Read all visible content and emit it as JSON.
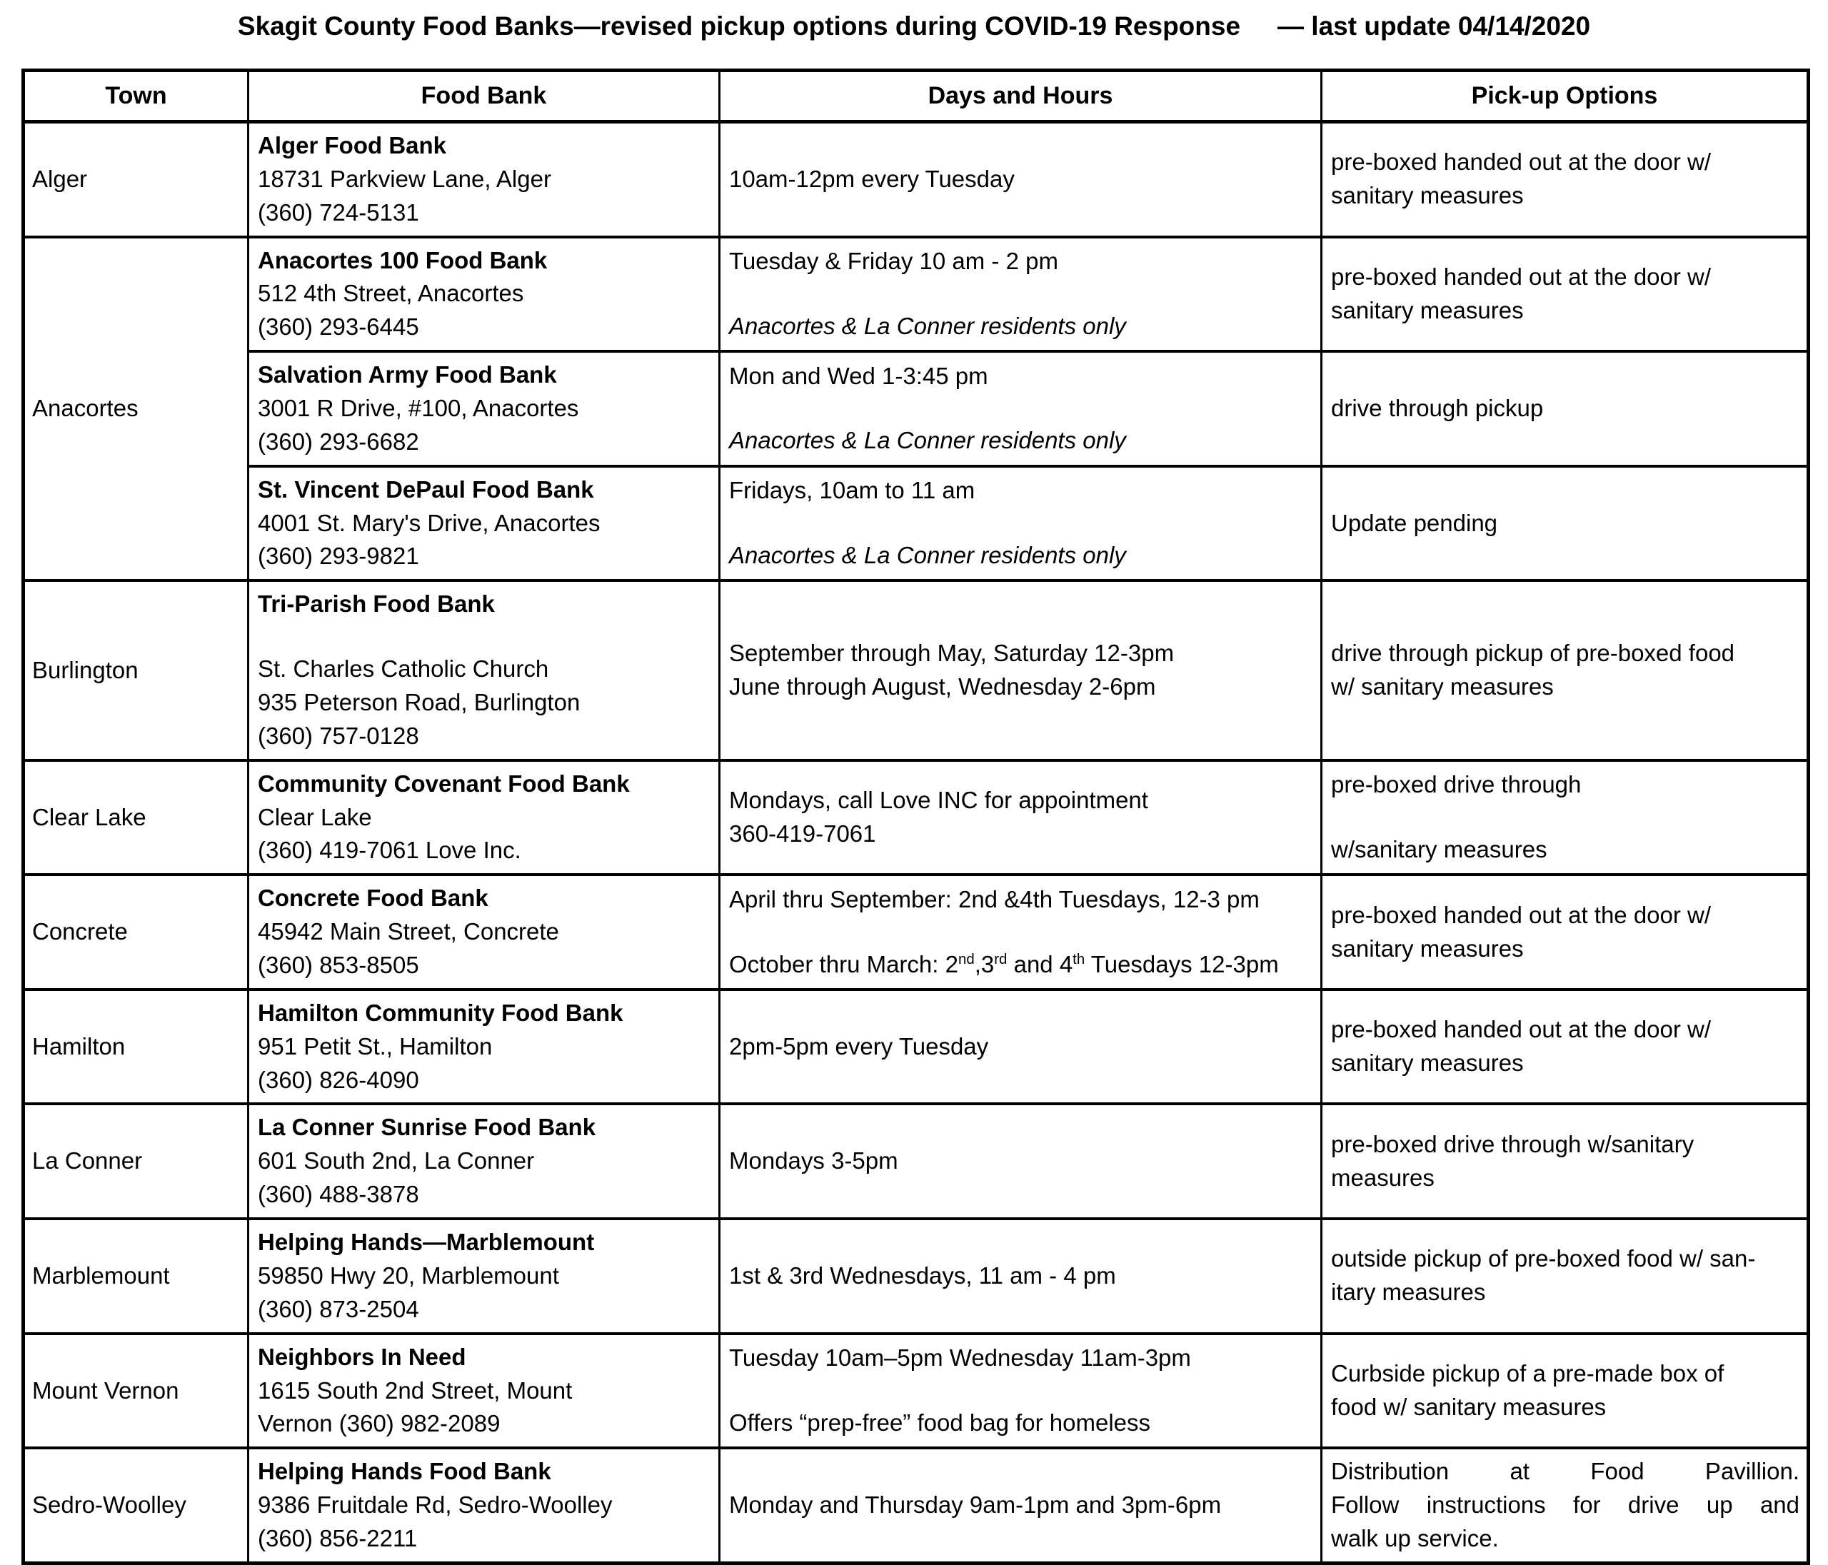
{
  "title": {
    "main": "Skagit County Food Banks—revised pickup options during COVID-19 Response",
    "update": "— last update 04/14/2020"
  },
  "colors": {
    "ink": "#000000",
    "paper": "#ffffff"
  },
  "table": {
    "headers": [
      "Town",
      "Food Bank",
      "Days and Hours",
      "Pick-up Options"
    ],
    "rows": [
      {
        "town": {
          "label": "Alger",
          "rowspan": 1
        },
        "bank": [
          {
            "t": "Alger Food Bank",
            "bold": true
          },
          {
            "t": "18731 Parkview Lane, Alger"
          },
          {
            "t": "(360) 724-5131"
          }
        ],
        "days": [
          {
            "t": "10am-12pm every Tuesday"
          }
        ],
        "pickup": [
          {
            "t": "pre-boxed handed out at the door w/"
          },
          {
            "t": "sanitary measures"
          }
        ]
      },
      {
        "town": {
          "label": "Anacortes",
          "rowspan": 3
        },
        "bank": [
          {
            "t": "Anacortes 100 Food Bank",
            "bold": true
          },
          {
            "t": "512 4th Street, Anacortes"
          },
          {
            "t": "(360) 293-6445"
          }
        ],
        "days": [
          {
            "t": "Tuesday & Friday 10 am - 2 pm"
          },
          {
            "t": "Anacortes & La Conner residents only",
            "italic": true,
            "gap": true
          }
        ],
        "pickup": [
          {
            "t": "pre-boxed handed out at the door w/"
          },
          {
            "t": "sanitary measures"
          }
        ]
      },
      {
        "bank": [
          {
            "t": "Salvation Army Food Bank",
            "bold": true
          },
          {
            "t": "3001 R Drive, #100, Anacortes"
          },
          {
            "t": "(360) 293-6682"
          }
        ],
        "days": [
          {
            "t": "Mon and Wed 1-3:45 pm"
          },
          {
            "t": "Anacortes & La Conner residents only",
            "italic": true,
            "gap": true
          }
        ],
        "pickup": [
          {
            "t": "drive through pickup"
          }
        ]
      },
      {
        "bank": [
          {
            "t": "St. Vincent DePaul Food Bank",
            "bold": true
          },
          {
            "t": "4001 St. Mary's Drive, Anacortes"
          },
          {
            "t": "(360) 293-9821"
          }
        ],
        "days": [
          {
            "t": "Fridays, 10am to 11 am"
          },
          {
            "t": "Anacortes & La Conner residents only",
            "italic": true,
            "gap": true
          }
        ],
        "pickup": [
          {
            "t": "Update pending"
          }
        ]
      },
      {
        "town": {
          "label": "Burlington",
          "rowspan": 1
        },
        "bank": [
          {
            "t": "Tri-Parish Food Bank",
            "bold": true
          },
          {
            "t": "St. Charles Catholic Church",
            "gap": true
          },
          {
            "t": "935 Peterson Road, Burlington"
          },
          {
            "t": "(360) 757-0128"
          }
        ],
        "days": [
          {
            "t": "September through May, Saturday 12-3pm"
          },
          {
            "t": "June through August, Wednesday 2-6pm"
          }
        ],
        "pickup": [
          {
            "t": "drive through pickup of pre-boxed food"
          },
          {
            "t": "w/ sanitary measures"
          }
        ]
      },
      {
        "town": {
          "label": "Clear Lake",
          "rowspan": 1
        },
        "bank": [
          {
            "t": "Community Covenant Food Bank",
            "bold": true
          },
          {
            "t": "Clear Lake"
          },
          {
            "t": "(360) 419-7061 Love Inc."
          }
        ],
        "days": [
          {
            "t": "Mondays, call Love INC for appointment"
          },
          {
            "t": "360-419-7061"
          }
        ],
        "pickup": [
          {
            "t": "pre-boxed drive through"
          },
          {
            "t": "w/sanitary measures",
            "gap": true
          }
        ]
      },
      {
        "town": {
          "label": "Concrete",
          "rowspan": 1
        },
        "bank": [
          {
            "t": "Concrete Food Bank",
            "bold": true
          },
          {
            "t": "45942 Main Street, Concrete"
          },
          {
            "t": "(360) 853-8505"
          }
        ],
        "days": [
          {
            "t": "April thru September:  2nd &4th Tuesdays, 12-3 pm"
          },
          {
            "gap": true,
            "parts": [
              {
                "t": "October thru March:  2"
              },
              {
                "t": "nd",
                "sup": true
              },
              {
                "t": ",3"
              },
              {
                "t": "rd",
                "sup": true
              },
              {
                "t": " and 4"
              },
              {
                "t": "th",
                "sup": true
              },
              {
                "t": " Tuesdays 12-3pm"
              }
            ]
          }
        ],
        "pickup": [
          {
            "t": "pre-boxed handed out at the door w/"
          },
          {
            "t": "sanitary measures"
          }
        ]
      },
      {
        "town": {
          "label": "Hamilton",
          "rowspan": 1
        },
        "bank": [
          {
            "t": "Hamilton Community Food Bank",
            "bold": true
          },
          {
            "t": "951 Petit St., Hamilton"
          },
          {
            "t": "(360) 826-4090"
          }
        ],
        "days": [
          {
            "t": "2pm-5pm every Tuesday"
          }
        ],
        "pickup": [
          {
            "t": "pre-boxed handed out at the door w/"
          },
          {
            "t": "sanitary measures"
          }
        ]
      },
      {
        "town": {
          "label": "La Conner",
          "rowspan": 1
        },
        "bank": [
          {
            "t": "La Conner Sunrise Food Bank",
            "bold": true
          },
          {
            "t": "601 South 2nd, La Conner"
          },
          {
            "t": "(360) 488-3878"
          }
        ],
        "days": [
          {
            "t": "Mondays 3-5pm"
          }
        ],
        "pickup": [
          {
            "t": "pre-boxed drive through w/sanitary"
          },
          {
            "t": "measures"
          }
        ]
      },
      {
        "town": {
          "label": "Marblemount",
          "rowspan": 1
        },
        "bank": [
          {
            "t": "Helping Hands—Marblemount",
            "bold": true
          },
          {
            "t": "59850 Hwy 20, Marblemount"
          },
          {
            "t": "(360) 873-2504"
          }
        ],
        "days": [
          {
            "t": "1st & 3rd Wednesdays, 11 am - 4 pm"
          }
        ],
        "pickup": [
          {
            "t": "outside pickup of pre-boxed food w/ san-"
          },
          {
            "t": "itary measures"
          }
        ]
      },
      {
        "town": {
          "label": "Mount Vernon",
          "rowspan": 1
        },
        "bank": [
          {
            "t": "Neighbors In Need",
            "bold": true
          },
          {
            "t": "1615 South 2nd Street, Mount"
          },
          {
            "t": "Vernon (360) 982-2089"
          }
        ],
        "days": [
          {
            "t": "Tuesday 10am–5pm Wednesday 11am-3pm"
          },
          {
            "t": "Offers “prep-free” food bag for homeless",
            "gap": true
          }
        ],
        "pickup": [
          {
            "t": "Curbside pickup of a pre-made box of"
          },
          {
            "t": "food w/ sanitary measures"
          }
        ]
      },
      {
        "town": {
          "label": "Sedro-Woolley",
          "rowspan": 1
        },
        "bank": [
          {
            "t": "Helping Hands Food Bank",
            "bold": true
          },
          {
            "t": "9386 Fruitdale Rd, Sedro-Woolley"
          },
          {
            "t": "(360) 856-2211"
          }
        ],
        "days": [
          {
            "t": "Monday and Thursday 9am-1pm and 3pm-6pm"
          }
        ],
        "pickup": [
          {
            "t": "Distribution at Food Pavillion.",
            "jl": true
          },
          {
            "t": "Follow instructions for drive up and",
            "jl": true
          },
          {
            "t": "walk up service."
          }
        ]
      }
    ]
  }
}
